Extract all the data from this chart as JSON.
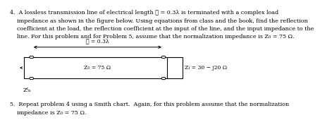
{
  "lines_p4": [
    "4.  A lossless transmission line of electrical length ℓ = 0.3λ is terminated with a complex load",
    "    impedance as shown in the figure below. Using equations from class and the book, find the reflection",
    "    coefficient at the load, the reflection coefficient at the input of the line, and the input impedance to the",
    "    line. For this problem and for Problem 5, assume that the normalization impedance is Z₀ = 75 Ω."
  ],
  "lines_p5": [
    "5.  Repeat problem 4 using a Smith chart.  Again, for this problem assume that the normalization",
    "    impedance is Z₀ = 75 Ω."
  ],
  "label_length": "ℓ = 0.3λ",
  "label_Z0": "Z₀ = 75 Ω",
  "label_ZL": "Zₗ = 30 − j20 Ω",
  "label_Zin": "Zᴵₙ",
  "line_color": "#000000",
  "bg_color": "#ffffff",
  "fontsize_body": 5.8,
  "fontsize_diagram": 5.5
}
